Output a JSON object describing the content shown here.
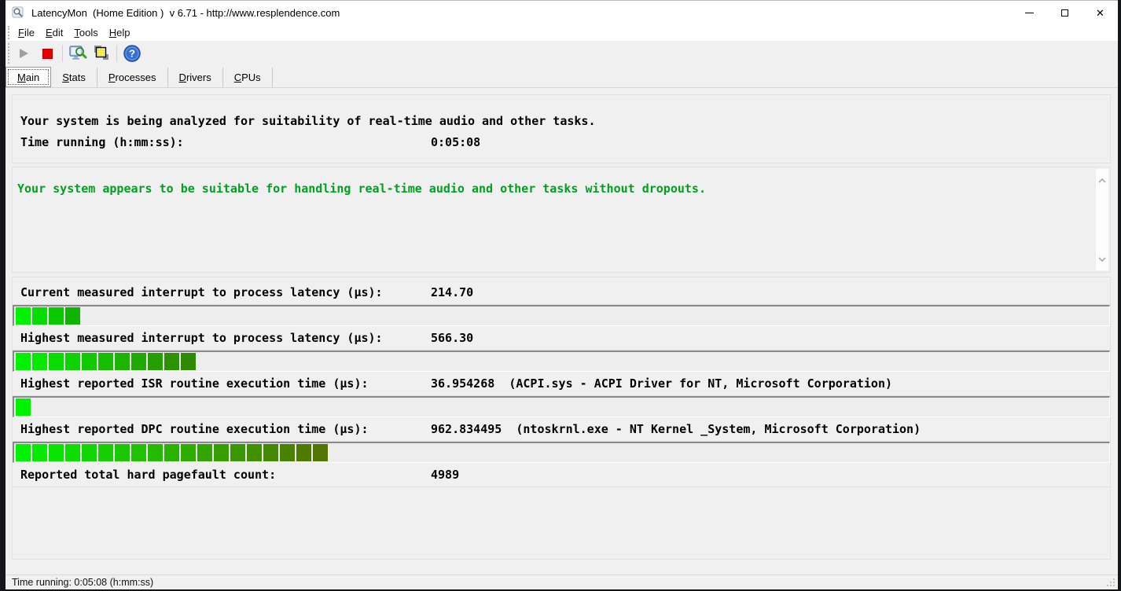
{
  "window": {
    "title": "LatencyMon  (Home Edition )  v 6.71 - http://www.resplendence.com"
  },
  "menu": {
    "items": [
      {
        "label": "File"
      },
      {
        "label": "Edit"
      },
      {
        "label": "Tools"
      },
      {
        "label": "Help"
      }
    ]
  },
  "toolbar": {
    "icons": [
      "play-icon",
      "stop-icon",
      "analyze-icon",
      "copy-report-icon",
      "help-icon"
    ],
    "play_enabled": false,
    "stop_color": "#e60000",
    "help_color": "#3570d4"
  },
  "tabs": [
    {
      "label": "Main",
      "selected": true
    },
    {
      "label": "Stats",
      "selected": false
    },
    {
      "label": "Processes",
      "selected": false
    },
    {
      "label": "Drivers",
      "selected": false
    },
    {
      "label": "CPUs",
      "selected": false
    }
  ],
  "analysis": {
    "status_line": "Your system is being analyzed for suitability of real-time audio and other tasks.",
    "time_label": "Time running (h:mm:ss):",
    "time_value": "0:05:08"
  },
  "verdict": {
    "text": "Your system appears to be suitable for handling real-time audio and other tasks without dropouts.",
    "color": "#00a020"
  },
  "metrics": [
    {
      "label": "Current measured interrupt to process latency (µs):",
      "value": "214.70",
      "bar": {
        "segments": 4,
        "start_color": "#00f200",
        "end_color": "#0fb400"
      }
    },
    {
      "label": "Highest measured interrupt to process latency (µs):",
      "value": "566.30",
      "bar": {
        "segments": 11,
        "start_color": "#00f200",
        "end_color": "#2e8a00"
      }
    },
    {
      "label": "Highest reported ISR routine execution time (µs):",
      "value": "36.954268  (ACPI.sys - ACPI Driver for NT, Microsoft Corporation)",
      "bar": {
        "segments": 1,
        "start_color": "#00f200",
        "end_color": "#00f200"
      }
    },
    {
      "label": "Highest reported DPC routine execution time (µs):",
      "value": "962.834495  (ntoskrnl.exe - NT Kernel _System, Microsoft Corporation)",
      "bar": {
        "segments": 19,
        "start_color": "#00f200",
        "end_color": "#527400"
      }
    },
    {
      "label": "Reported total hard pagefault count:",
      "value": "4989",
      "bar": null
    }
  ],
  "statusbar": {
    "text": "Time running: 0:05:08  (h:mm:ss)"
  }
}
